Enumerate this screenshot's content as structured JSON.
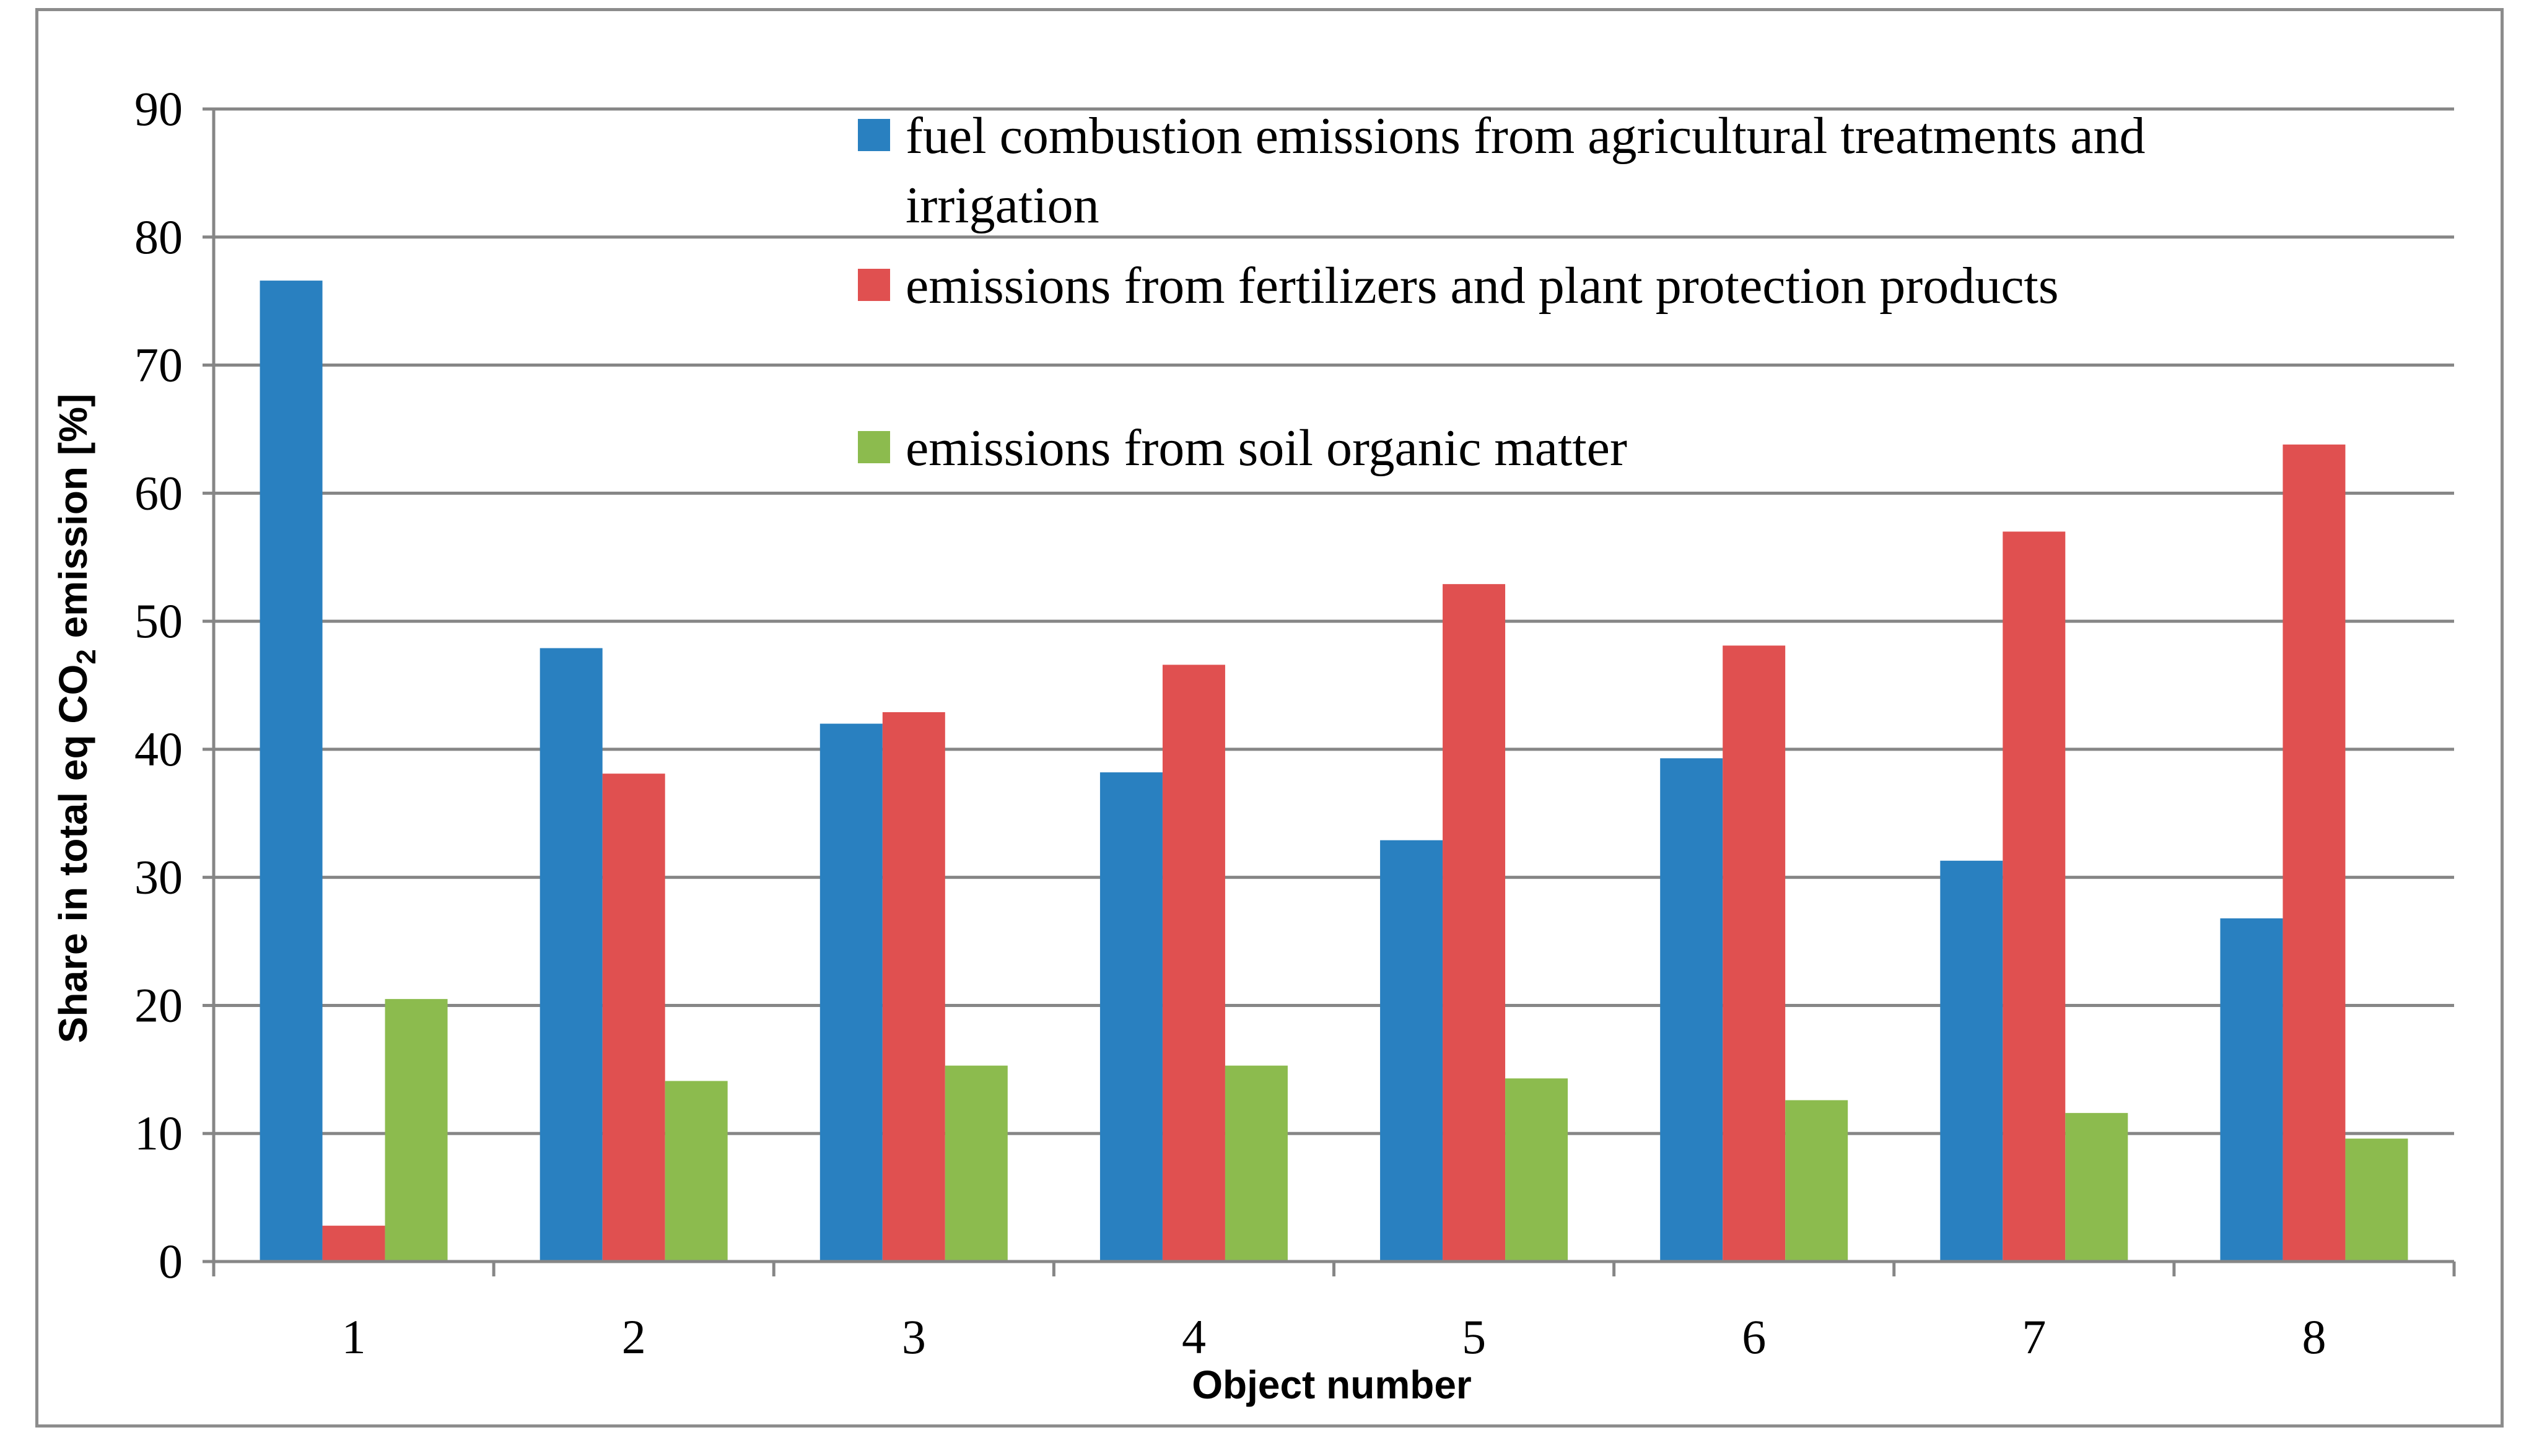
{
  "chart_data": {
    "type": "bar",
    "title": "",
    "xlabel": "Object number",
    "ylabel": {
      "prefix": "Share in total eq CO",
      "subscript": "2",
      "suffix": " emission [%]"
    },
    "ylim": [
      0,
      90
    ],
    "yticks": [
      0,
      10,
      20,
      30,
      40,
      50,
      60,
      70,
      80,
      90
    ],
    "grid": true,
    "legend_position": "top-right",
    "categories": [
      "1",
      "2",
      "3",
      "4",
      "5",
      "6",
      "7",
      "8"
    ],
    "series": [
      {
        "name": "fuel combustion emissions from agricultural treatments and irrigation",
        "legend_lines": [
          "fuel combustion emissions from agricultural treatments and",
          "irrigation"
        ],
        "color": "#2980c0",
        "values": [
          76.6,
          47.9,
          42.0,
          38.2,
          32.9,
          39.3,
          31.3,
          26.8
        ]
      },
      {
        "name": "emissions from fertilizers and plant protection products",
        "legend_lines": [
          "emissions from fertilizers and plant protection products"
        ],
        "color": "#e05050",
        "values": [
          2.8,
          38.1,
          42.9,
          46.6,
          52.9,
          48.1,
          57.0,
          63.8
        ]
      },
      {
        "name": "emissions from soil organic matter",
        "legend_lines": [
          "emissions from soil organic matter"
        ],
        "color": "#8cbb4e",
        "values": [
          20.5,
          14.1,
          15.3,
          15.3,
          14.3,
          12.6,
          11.6,
          9.6
        ]
      }
    ]
  }
}
